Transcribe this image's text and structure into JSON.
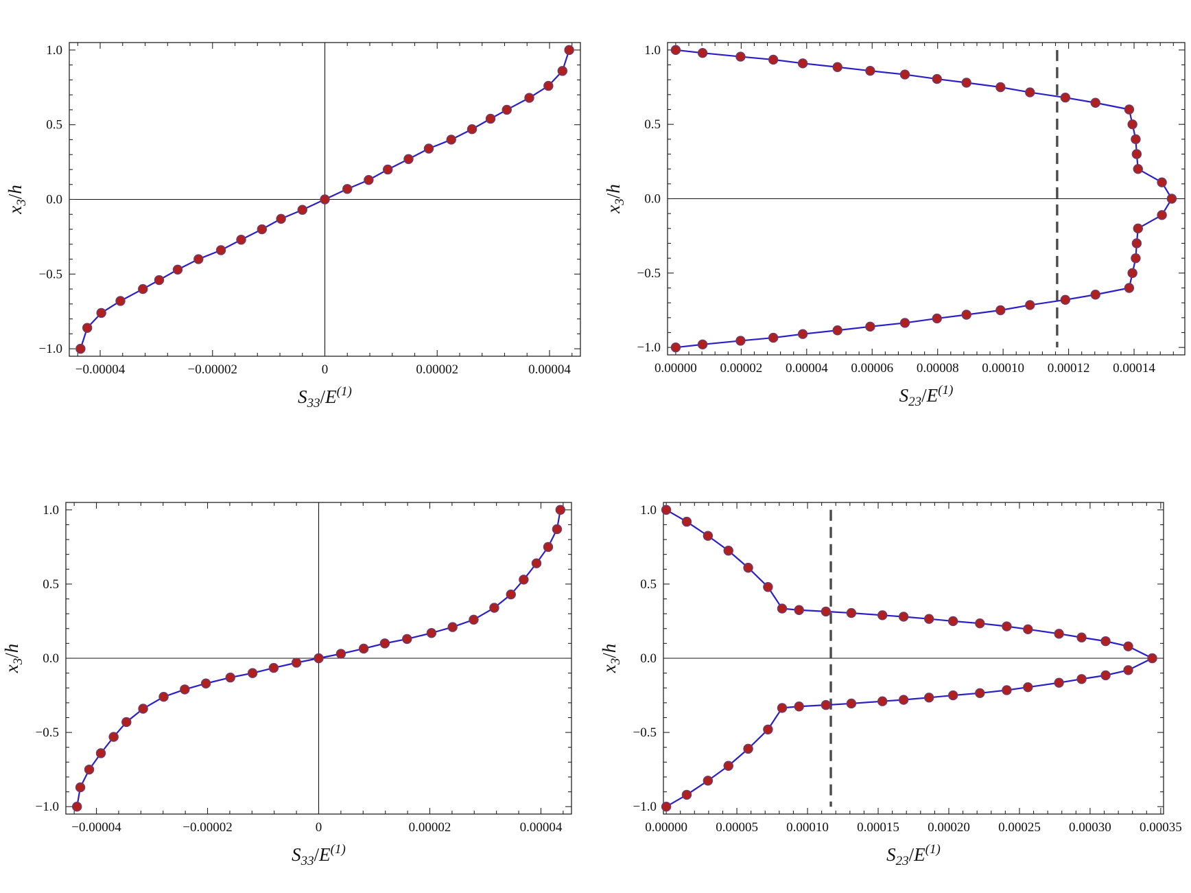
{
  "chart_data": [
    {
      "id": "top-left",
      "type": "line",
      "xlabel": {
        "main": "S",
        "sub": "33",
        "den": "E",
        "sup": "(1)"
      },
      "ylabel": {
        "main": "x",
        "sub": "3",
        "den": "h"
      },
      "xlim": [
        -4.55e-05,
        4.55e-05
      ],
      "ylim": [
        -1.05,
        1.05
      ],
      "xticks": [
        -4e-05,
        -2e-05,
        0,
        2e-05,
        4e-05
      ],
      "xtick_labels": [
        "−0.00004",
        "−0.00002",
        "0",
        "0.00002",
        "0.00004"
      ],
      "yticks": [
        -1.0,
        -0.5,
        0.0,
        0.5,
        1.0
      ],
      "ytick_labels": [
        "−1.0",
        "−0.5",
        "0.0",
        "0.5",
        "1.0"
      ],
      "zero_lines": {
        "x": true,
        "y": true
      },
      "reference_line_x": null,
      "series": [
        {
          "x": [
            -4.35e-05,
            -4.23e-05,
            -3.98e-05,
            -3.64e-05,
            -3.24e-05,
            -2.95e-05,
            -2.62e-05,
            -2.25e-05,
            -1.85e-05,
            -1.49e-05,
            -1.12e-05,
            -7.8e-06,
            -4e-06,
            0.0,
            4e-06,
            7.8e-06,
            1.12e-05,
            1.49e-05,
            1.85e-05,
            2.25e-05,
            2.62e-05,
            2.95e-05,
            3.24e-05,
            3.64e-05,
            3.98e-05,
            4.23e-05,
            4.35e-05
          ],
          "y": [
            -1.0,
            -0.86,
            -0.76,
            -0.68,
            -0.6,
            -0.54,
            -0.47,
            -0.4,
            -0.34,
            -0.27,
            -0.2,
            -0.13,
            -0.07,
            0.0,
            0.07,
            0.13,
            0.2,
            0.27,
            0.34,
            0.4,
            0.47,
            0.54,
            0.6,
            0.68,
            0.76,
            0.86,
            1.0
          ]
        }
      ]
    },
    {
      "id": "top-right",
      "type": "line",
      "xlabel": {
        "main": "S",
        "sub": "23",
        "den": "E",
        "sup": "(1)"
      },
      "ylabel": {
        "main": "x",
        "sub": "3",
        "den": "h"
      },
      "xlim": [
        -2.5e-06,
        0.0001555
      ],
      "ylim": [
        -1.05,
        1.05
      ],
      "xticks": [
        0,
        2e-05,
        4e-05,
        6e-05,
        8e-05,
        0.0001,
        0.00012,
        0.00014
      ],
      "xtick_labels": [
        "0.00000",
        "0.00002",
        "0.00004",
        "0.00006",
        "0.00008",
        "0.00010",
        "0.00012",
        "0.00014"
      ],
      "yticks": [
        -1.0,
        -0.5,
        0.0,
        0.5,
        1.0
      ],
      "ytick_labels": [
        "−1.0",
        "−0.5",
        "0.0",
        "0.5",
        "1.0"
      ],
      "zero_lines": {
        "x": false,
        "y": true
      },
      "reference_line_x": 0.0001165,
      "series": [
        {
          "x": [
            0.0,
            8.2e-06,
            1.98e-05,
            2.98e-05,
            3.88e-05,
            4.94e-05,
            5.94e-05,
            7e-05,
            7.98e-05,
            8.88e-05,
            9.92e-05,
            0.0001082,
            0.000119,
            0.0001282,
            0.0001385,
            0.0001395,
            0.0001405,
            0.0001408,
            0.0001412,
            0.0001485,
            0.0001515,
            0.0001485,
            0.0001412,
            0.0001408,
            0.0001405,
            0.0001395,
            0.0001385,
            0.0001282,
            0.000119,
            0.0001082,
            9.92e-05,
            8.88e-05,
            7.98e-05,
            7e-05,
            5.94e-05,
            4.94e-05,
            3.88e-05,
            2.98e-05,
            1.98e-05,
            8.2e-06,
            0.0
          ],
          "y": [
            1.0,
            0.98,
            0.955,
            0.935,
            0.91,
            0.885,
            0.86,
            0.835,
            0.805,
            0.78,
            0.75,
            0.715,
            0.68,
            0.645,
            0.6,
            0.5,
            0.4,
            0.3,
            0.2,
            0.11,
            0.0,
            -0.11,
            -0.2,
            -0.3,
            -0.4,
            -0.5,
            -0.6,
            -0.645,
            -0.68,
            -0.715,
            -0.75,
            -0.78,
            -0.805,
            -0.835,
            -0.86,
            -0.885,
            -0.91,
            -0.935,
            -0.955,
            -0.98,
            -1.0
          ]
        }
      ]
    },
    {
      "id": "bottom-left",
      "type": "line",
      "xlabel": {
        "main": "S",
        "sub": "33",
        "den": "E",
        "sup": "(1)"
      },
      "ylabel": {
        "main": "x",
        "sub": "3",
        "den": "h"
      },
      "xlim": [
        -4.55e-05,
        4.55e-05
      ],
      "ylim": [
        -1.05,
        1.05
      ],
      "xticks": [
        -4e-05,
        -2e-05,
        0,
        2e-05,
        4e-05
      ],
      "xtick_labels": [
        "−0.00004",
        "−0.00002",
        "0",
        "0.00002",
        "0.00004"
      ],
      "yticks": [
        -1.0,
        -0.5,
        0.0,
        0.5,
        1.0
      ],
      "ytick_labels": [
        "−1.0",
        "−0.5",
        "0.0",
        "0.5",
        "1.0"
      ],
      "zero_lines": {
        "x": true,
        "y": true
      },
      "reference_line_x": null,
      "series": [
        {
          "x": [
            -4.35e-05,
            -4.29e-05,
            -4.13e-05,
            -3.92e-05,
            -3.69e-05,
            -3.46e-05,
            -3.16e-05,
            -2.79e-05,
            -2.41e-05,
            -2.03e-05,
            -1.59e-05,
            -1.19e-05,
            -8.1e-06,
            -4e-06,
            0.0,
            4e-06,
            8.1e-06,
            1.19e-05,
            1.59e-05,
            2.03e-05,
            2.41e-05,
            2.79e-05,
            3.16e-05,
            3.46e-05,
            3.69e-05,
            3.92e-05,
            4.13e-05,
            4.29e-05,
            4.35e-05
          ],
          "y": [
            -1.0,
            -0.87,
            -0.75,
            -0.64,
            -0.53,
            -0.43,
            -0.34,
            -0.26,
            -0.21,
            -0.17,
            -0.13,
            -0.1,
            -0.065,
            -0.03,
            0.0,
            0.03,
            0.065,
            0.1,
            0.13,
            0.17,
            0.21,
            0.26,
            0.34,
            0.43,
            0.53,
            0.64,
            0.75,
            0.87,
            1.0
          ]
        }
      ]
    },
    {
      "id": "bottom-right",
      "type": "line",
      "xlabel": {
        "main": "S",
        "sub": "23",
        "den": "E",
        "sup": "(1)"
      },
      "ylabel": {
        "main": "x",
        "sub": "3",
        "den": "h"
      },
      "xlim": [
        -2e-06,
        0.000352
      ],
      "ylim": [
        -1.05,
        1.05
      ],
      "xticks": [
        0,
        5e-05,
        0.0001,
        0.00015,
        0.0002,
        0.00025,
        0.0003,
        0.00035
      ],
      "xtick_labels": [
        "0.00000",
        "0.00005",
        "0.00010",
        "0.00015",
        "0.00020",
        "0.00025",
        "0.00030",
        "0.00035"
      ],
      "yticks": [
        -1.0,
        -0.5,
        0.0,
        0.5,
        1.0
      ],
      "ytick_labels": [
        "−1.0",
        "−0.5",
        "0.0",
        "0.5",
        "1.0"
      ],
      "zero_lines": {
        "x": false,
        "y": true
      },
      "reference_line_x": 0.0001165,
      "series": [
        {
          "x": [
            0.0,
            1.45e-05,
            2.95e-05,
            4.4e-05,
            5.8e-05,
            7.2e-05,
            8.2e-05,
            9.4e-05,
            0.000113,
            0.000131,
            0.000153,
            0.000168,
            0.000186,
            0.000203,
            0.000222,
            0.000241,
            0.000256,
            0.000278,
            0.000294,
            0.000311,
            0.000327,
            0.000344,
            0.000327,
            0.000311,
            0.000294,
            0.000278,
            0.000256,
            0.000241,
            0.000222,
            0.000203,
            0.000186,
            0.000168,
            0.000153,
            0.000131,
            0.000113,
            9.4e-05,
            8.2e-05,
            7.2e-05,
            5.8e-05,
            4.4e-05,
            2.95e-05,
            1.45e-05,
            0.0
          ],
          "y": [
            1.0,
            0.92,
            0.825,
            0.725,
            0.61,
            0.48,
            0.335,
            0.325,
            0.315,
            0.305,
            0.29,
            0.28,
            0.265,
            0.25,
            0.235,
            0.215,
            0.195,
            0.165,
            0.14,
            0.115,
            0.08,
            0.0,
            -0.08,
            -0.115,
            -0.14,
            -0.165,
            -0.195,
            -0.215,
            -0.235,
            -0.25,
            -0.265,
            -0.28,
            -0.29,
            -0.305,
            -0.315,
            -0.325,
            -0.335,
            -0.48,
            -0.61,
            -0.725,
            -0.825,
            -0.92,
            -1.0
          ]
        }
      ]
    }
  ]
}
